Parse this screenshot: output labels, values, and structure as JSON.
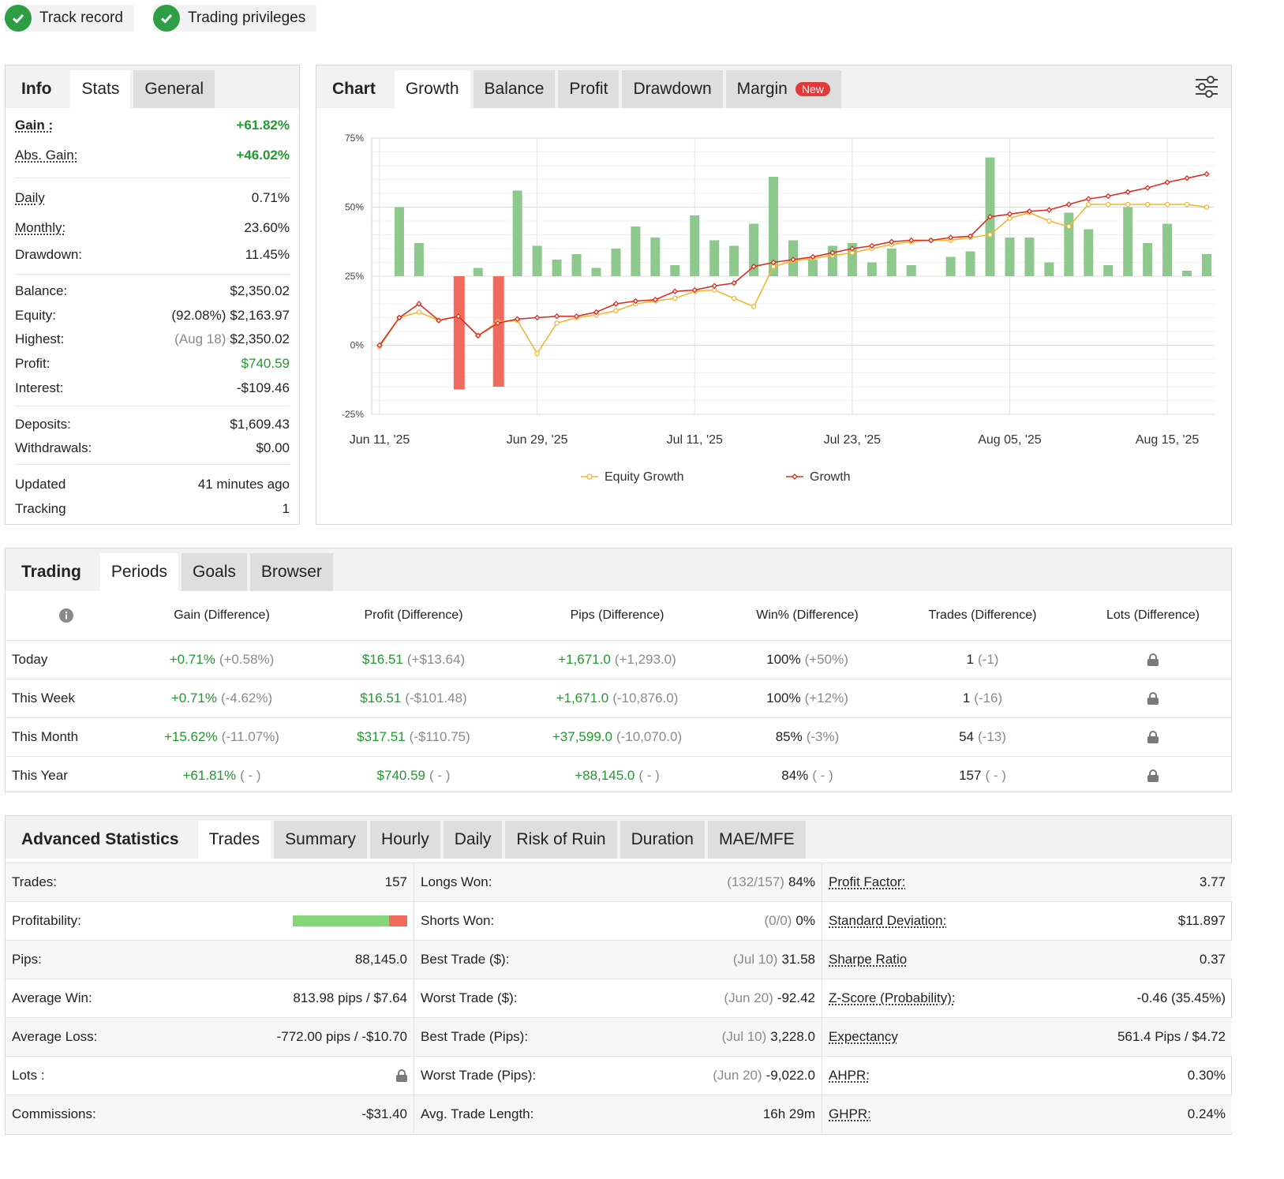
{
  "badges": [
    "Track record",
    "Trading privileges"
  ],
  "info_panel": {
    "tabs": [
      "Info",
      "Stats",
      "General"
    ],
    "rows": [
      {
        "label": "Gain :",
        "value": "+61.82%"
      },
      {
        "label": "Abs. Gain:",
        "value": "+46.02%"
      },
      {
        "label": "Daily",
        "value": "0.71%"
      },
      {
        "label": "Monthly:",
        "value": "23.60%"
      },
      {
        "label": "Drawdown:",
        "value": "11.45%"
      },
      {
        "label": "Balance:",
        "value": "$2,350.02"
      },
      {
        "label": "Equity:",
        "note": "(92.08%)",
        "value": "$2,163.97"
      },
      {
        "label": "Highest:",
        "note": "(Aug 18)",
        "value": "$2,350.02"
      },
      {
        "label": "Profit:",
        "value": "$740.59"
      },
      {
        "label": "Interest:",
        "value": "-$109.46"
      },
      {
        "label": "Deposits:",
        "value": "$1,609.43"
      },
      {
        "label": "Withdrawals:",
        "value": "$0.00"
      },
      {
        "label": "Updated",
        "value": "41 minutes ago"
      },
      {
        "label": "Tracking",
        "value": "1"
      }
    ]
  },
  "chart_panel": {
    "tabs": [
      "Chart",
      "Growth",
      "Balance",
      "Profit",
      "Drawdown",
      "Margin"
    ],
    "new_badge": "New",
    "settings_icon": "sliders-icon"
  },
  "chart_data": {
    "type": "bar+line",
    "ylim": [
      -25,
      75
    ],
    "yticks": [
      "75%",
      "50%",
      "25%",
      "0%",
      "-25%"
    ],
    "xticks": [
      "Jun 11, '25",
      "Jun 29, '25",
      "Jul 11, '25",
      "Jul 23, '25",
      "Aug 05, '25",
      "Aug 15, '25"
    ],
    "bars_base": 25,
    "bars": [
      0,
      50,
      37,
      0,
      -16,
      28,
      -15,
      56,
      36,
      31,
      33,
      28,
      35,
      43,
      39,
      29,
      47,
      38,
      36,
      44,
      61,
      38,
      31,
      36,
      37,
      30,
      35,
      29,
      0,
      32,
      34,
      68,
      39,
      39,
      30,
      48,
      42,
      29,
      50,
      37,
      44,
      27,
      33
    ],
    "series": [
      {
        "name": "Equity Growth",
        "color": "#f2b632",
        "values": [
          -0.5,
          10,
          12,
          9,
          10.5,
          3.5,
          8.5,
          9,
          -3,
          8,
          10,
          11,
          12.5,
          15,
          16,
          17,
          19.5,
          20,
          17,
          14,
          28.5,
          30.5,
          31.5,
          32.5,
          33.5,
          35,
          36.5,
          37.5,
          38,
          38,
          39,
          40,
          46,
          48,
          45,
          43,
          51,
          51,
          51,
          51,
          51,
          51,
          50
        ]
      },
      {
        "name": "Growth",
        "color": "#d93025",
        "values": [
          0,
          10,
          15,
          9,
          10.5,
          3.5,
          8,
          9.5,
          10,
          10.5,
          10.5,
          12,
          15,
          16,
          16.5,
          19.5,
          20,
          21.5,
          22.5,
          28.5,
          30,
          31,
          32,
          33.5,
          35,
          36,
          37.5,
          38,
          38,
          39,
          39.5,
          46.5,
          47.5,
          48.5,
          49,
          51,
          53,
          54,
          55.5,
          57,
          59,
          60.5,
          62
        ]
      }
    ],
    "bar_colors": {
      "up": "#8dc98d",
      "down": "#f06b5e"
    }
  },
  "periods": {
    "tabs": [
      "Trading",
      "Periods",
      "Goals",
      "Browser"
    ],
    "info_icon": "info-icon",
    "headers": [
      "Gain (Difference)",
      "Profit (Difference)",
      "Pips (Difference)",
      "Win% (Difference)",
      "Trades (Difference)",
      "Lots (Difference)"
    ],
    "rows": [
      {
        "label": "Today",
        "gain": "+0.71%",
        "gain_d": "(+0.58%)",
        "profit": "$16.51",
        "profit_d": "(+$13.64)",
        "pips": "+1,671.0",
        "pips_d": "(+1,293.0)",
        "win": "100%",
        "win_d": "(+50%)",
        "trades": "1",
        "trades_d": "(-1)"
      },
      {
        "label": "This Week",
        "gain": "+0.71%",
        "gain_d": "(-4.62%)",
        "profit": "$16.51",
        "profit_d": "(-$101.48)",
        "pips": "+1,671.0",
        "pips_d": "(-10,876.0)",
        "win": "100%",
        "win_d": "(+12%)",
        "trades": "1",
        "trades_d": "(-16)"
      },
      {
        "label": "This Month",
        "gain": "+15.62%",
        "gain_d": "(-11.07%)",
        "profit": "$317.51",
        "profit_d": "(-$110.75)",
        "pips": "+37,599.0",
        "pips_d": "(-10,070.0)",
        "win": "85%",
        "win_d": "(-3%)",
        "trades": "54",
        "trades_d": "(-13)"
      },
      {
        "label": "This Year",
        "gain": "+61.81%",
        "gain_d": "( - )",
        "profit": "$740.59",
        "profit_d": "( - )",
        "pips": "+88,145.0",
        "pips_d": "( - )",
        "win": "84%",
        "win_d": "( - )",
        "trades": "157",
        "trades_d": "( - )"
      }
    ]
  },
  "advanced": {
    "tabs": [
      "Advanced Statistics",
      "Trades",
      "Summary",
      "Hourly",
      "Daily",
      "Risk of Ruin",
      "Duration",
      "MAE/MFE"
    ],
    "profitability": 0.84,
    "col1": [
      {
        "label": "Trades:",
        "value": "157"
      },
      {
        "label": "Profitability:",
        "value": ""
      },
      {
        "label": "Pips:",
        "value": "88,145.0"
      },
      {
        "label": "Average Win:",
        "value": "813.98 pips / $7.64"
      },
      {
        "label": "Average Loss:",
        "value": "-772.00 pips / -$10.70"
      },
      {
        "label": "Lots :",
        "value": ""
      },
      {
        "label": "Commissions:",
        "value": "-$31.40"
      }
    ],
    "col2": [
      {
        "label": "Longs Won:",
        "note": "(132/157)",
        "value": "84%"
      },
      {
        "label": "Shorts Won:",
        "note": "(0/0)",
        "value": "0%"
      },
      {
        "label": "Best Trade ($):",
        "note": "(Jul 10)",
        "value": "31.58"
      },
      {
        "label": "Worst Trade ($):",
        "note": "(Jun 20)",
        "value": "-92.42"
      },
      {
        "label": "Best Trade (Pips):",
        "note": "(Jul 10)",
        "value": "3,228.0"
      },
      {
        "label": "Worst Trade (Pips):",
        "note": "(Jun 20)",
        "value": "-9,022.0"
      },
      {
        "label": "Avg. Trade Length:",
        "note": "",
        "value": "16h 29m"
      }
    ],
    "col3": [
      {
        "label": "Profit Factor:",
        "value": "3.77"
      },
      {
        "label": "Standard Deviation:",
        "value": "$11.897"
      },
      {
        "label": "Sharpe Ratio",
        "value": "0.37"
      },
      {
        "label": "Z-Score (Probability):",
        "value": "-0.46 (35.45%)"
      },
      {
        "label": "Expectancy",
        "value": "561.4 Pips / $4.72"
      },
      {
        "label": "AHPR:",
        "value": "0.30%"
      },
      {
        "label": "GHPR:",
        "value": "0.24%"
      }
    ]
  }
}
